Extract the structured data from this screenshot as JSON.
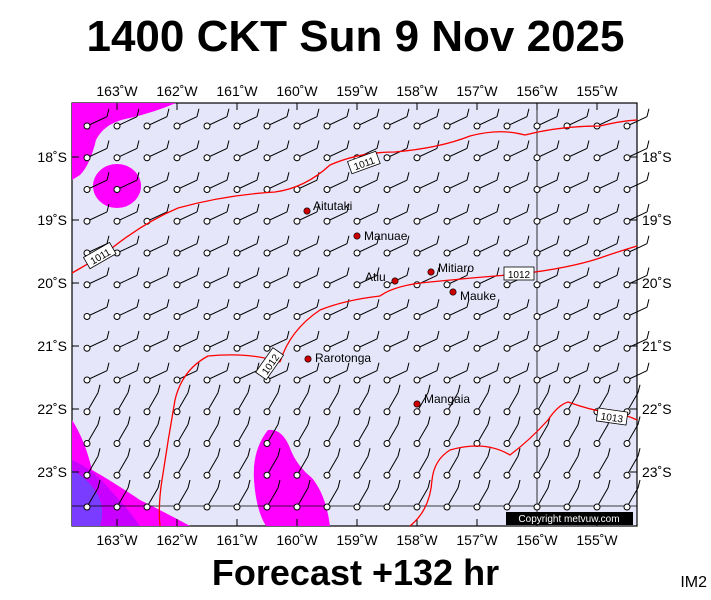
{
  "title": "1400 CKT Sun 9 Nov 2025",
  "forecast": "Forecast +132 hr",
  "image_code": "IM2",
  "copyright": "Copyright metvuw.com",
  "axes": {
    "lon_labels": [
      "163˚W",
      "162˚W",
      "161˚W",
      "160˚W",
      "159˚W",
      "158˚W",
      "157˚W",
      "156˚W",
      "155˚W"
    ],
    "lat_labels": [
      "18˚S",
      "19˚S",
      "20˚S",
      "21˚S",
      "22˚S",
      "23˚S"
    ]
  },
  "places": [
    {
      "name": "Aitutaki"
    },
    {
      "name": "Manuae"
    },
    {
      "name": "Atiu"
    },
    {
      "name": "Mitiaro"
    },
    {
      "name": "Mauke"
    },
    {
      "name": "Rarotonga"
    },
    {
      "name": "Mangaia"
    }
  ],
  "isobars": [
    {
      "label": "1011"
    },
    {
      "label": "1011"
    },
    {
      "label": "1012"
    },
    {
      "label": "1012"
    },
    {
      "label": "1013"
    }
  ],
  "colors": {
    "sea": "#e6e6fa",
    "rain_light": "#ff00ff",
    "rain_mid": "#c800ff",
    "rain_heavy": "#7a3cff",
    "isobar": "#ff0000",
    "town": "#cc0000"
  }
}
